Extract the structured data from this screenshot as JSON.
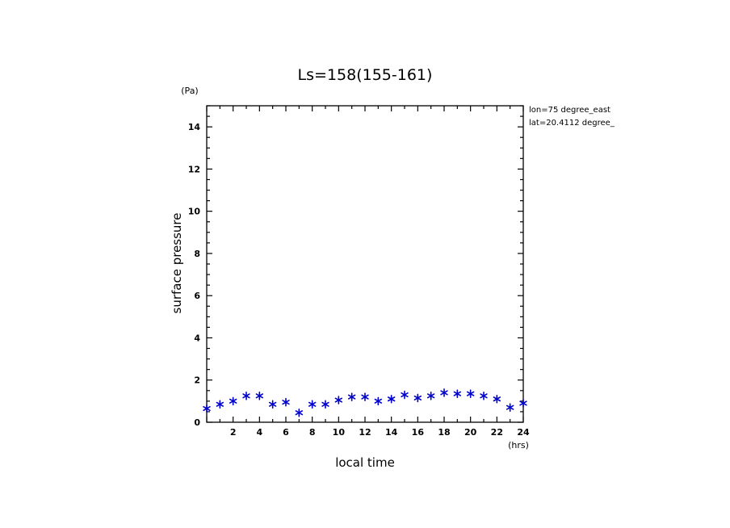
{
  "chart_data": {
    "type": "scatter",
    "title": "Ls=158(155-161)",
    "xlabel": "local time",
    "ylabel": "surface pressure",
    "x_unit": "(hrs)",
    "y_unit": "(Pa)",
    "xlim": [
      0,
      24
    ],
    "ylim": [
      0,
      15
    ],
    "x_ticks": [
      2,
      4,
      6,
      8,
      10,
      12,
      14,
      16,
      18,
      20,
      22,
      24
    ],
    "x_tick_labels": [
      "2",
      "4",
      "6",
      "8",
      "10",
      "12",
      "14",
      "16",
      "18",
      "20",
      "22",
      "24"
    ],
    "y_ticks": [
      0,
      2,
      4,
      6,
      8,
      10,
      12,
      14
    ],
    "y_tick_labels": [
      "0",
      "2",
      "4",
      "6",
      "8",
      "10",
      "12",
      "14"
    ],
    "annotations": [
      "lon=75 degree_east",
      "lat=20.4112 degree_"
    ],
    "marker_color": "#0000cc",
    "grid": false,
    "series": [
      {
        "x": [
          0,
          1,
          2,
          3,
          4,
          5,
          6,
          7,
          8,
          9,
          10,
          11,
          12,
          13,
          14,
          15,
          16,
          17,
          18,
          19,
          20,
          21,
          22,
          23,
          24
        ],
        "y": [
          0.65,
          0.85,
          1.0,
          1.25,
          1.25,
          0.85,
          0.95,
          0.45,
          0.85,
          0.85,
          1.05,
          1.2,
          1.2,
          1.0,
          1.1,
          1.3,
          1.15,
          1.25,
          1.4,
          1.35,
          1.35,
          1.25,
          1.1,
          0.7,
          0.9
        ]
      }
    ]
  }
}
